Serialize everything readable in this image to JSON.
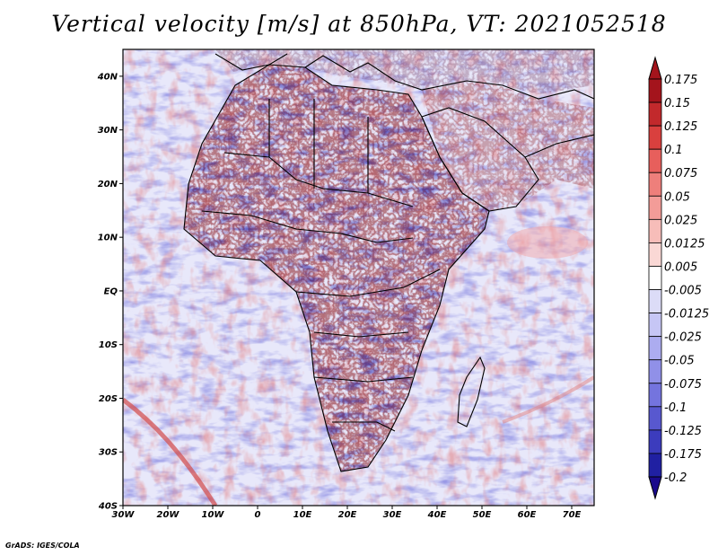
{
  "title": "Vertical velocity [m/s] at 850hPa, VT: 2021052518",
  "credit": "GrADS: IGES/COLA",
  "map": {
    "lat_labels": [
      "40N",
      "30N",
      "20N",
      "10N",
      "EQ",
      "10S",
      "20S",
      "30S",
      "40S"
    ],
    "lon_labels": [
      "30W",
      "20W",
      "10W",
      "0",
      "10E",
      "20E",
      "30E",
      "40E",
      "50E",
      "60E",
      "70E"
    ]
  },
  "colorbar": {
    "levels": [
      "0.175",
      "0.15",
      "0.125",
      "0.1",
      "0.075",
      "0.05",
      "0.025",
      "0.0125",
      "0.005",
      "-0.005",
      "-0.0125",
      "-0.025",
      "-0.05",
      "-0.075",
      "-0.1",
      "-0.125",
      "-0.175",
      "-0.2"
    ],
    "colors": [
      "#a4141c",
      "#c2292c",
      "#d9403e",
      "#e75f5c",
      "#ee7f7b",
      "#f39c98",
      "#f7bdb9",
      "#fad8d5",
      "#ffffff",
      "#dcdcf7",
      "#c6c6f5",
      "#acacf0",
      "#9090e8",
      "#7474de",
      "#5858cf",
      "#3c3cbd",
      "#2020a2"
    ],
    "top_arrow_color": "#a4141c",
    "bottom_arrow_color": "#1a0a8c"
  },
  "colors": {
    "positive": "#c8282c",
    "negative": "#3030c8",
    "background_field": "#e6e6fa"
  }
}
